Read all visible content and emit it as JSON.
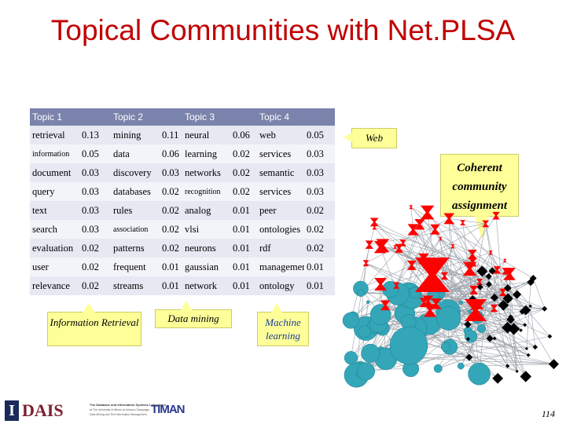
{
  "title": "Topical Communities with Net.PLSA",
  "headers": [
    "Topic 1",
    "Topic 2",
    "Topic 3",
    "Topic 4"
  ],
  "rows": [
    [
      [
        "retrieval",
        "0.13"
      ],
      [
        "mining",
        "0.11"
      ],
      [
        "neural",
        "0.06"
      ],
      [
        "web",
        "0.05"
      ]
    ],
    [
      [
        "information",
        "0.05"
      ],
      [
        "data",
        "0.06"
      ],
      [
        "learning",
        "0.02"
      ],
      [
        "services",
        "0.03"
      ]
    ],
    [
      [
        "document",
        "0.03"
      ],
      [
        "discovery",
        "0.03"
      ],
      [
        "networks",
        "0.02"
      ],
      [
        "semantic",
        "0.03"
      ]
    ],
    [
      [
        "query",
        "0.03"
      ],
      [
        "databases",
        "0.02"
      ],
      [
        "recognition",
        "0.02"
      ],
      [
        "services",
        "0.03"
      ]
    ],
    [
      [
        "text",
        "0.03"
      ],
      [
        "rules",
        "0.02"
      ],
      [
        "analog",
        "0.01"
      ],
      [
        "peer",
        "0.02"
      ]
    ],
    [
      [
        "search",
        "0.03"
      ],
      [
        "association",
        "0.02"
      ],
      [
        "vlsi",
        "0.01"
      ],
      [
        "ontologies",
        "0.02"
      ]
    ],
    [
      [
        "evaluation",
        "0.02"
      ],
      [
        "patterns",
        "0.02"
      ],
      [
        "neurons",
        "0.01"
      ],
      [
        "rdf",
        "0.02"
      ]
    ],
    [
      [
        "user",
        "0.02"
      ],
      [
        "frequent",
        "0.01"
      ],
      [
        "gaussian",
        "0.01"
      ],
      [
        "management",
        "0.01"
      ]
    ],
    [
      [
        "relevance",
        "0.02"
      ],
      [
        "streams",
        "0.01"
      ],
      [
        "network",
        "0.01"
      ],
      [
        "ontology",
        "0.01"
      ]
    ]
  ],
  "callouts": {
    "ir": "Information Retrieval",
    "dm": "Data mining",
    "ml": "Machine learning",
    "web": "Web",
    "coherent": "Coherent community assignment"
  },
  "footer": {
    "logo_text": "DAIS",
    "lab_line1": "The Database and Information Systems Laboratory",
    "lab_line2": "at The University of Illinois at Urbana-Champaign",
    "lab_line3": "Data Mining and Text Information Management",
    "timan": "TIMAN",
    "page": "114"
  },
  "colors": {
    "title": "#c00000",
    "header_bg": "#7a83ab",
    "callout_bg": "#ffff99",
    "red_node": "#ff0000",
    "cyan_node": "#33a6b8",
    "black_node": "#000000"
  }
}
